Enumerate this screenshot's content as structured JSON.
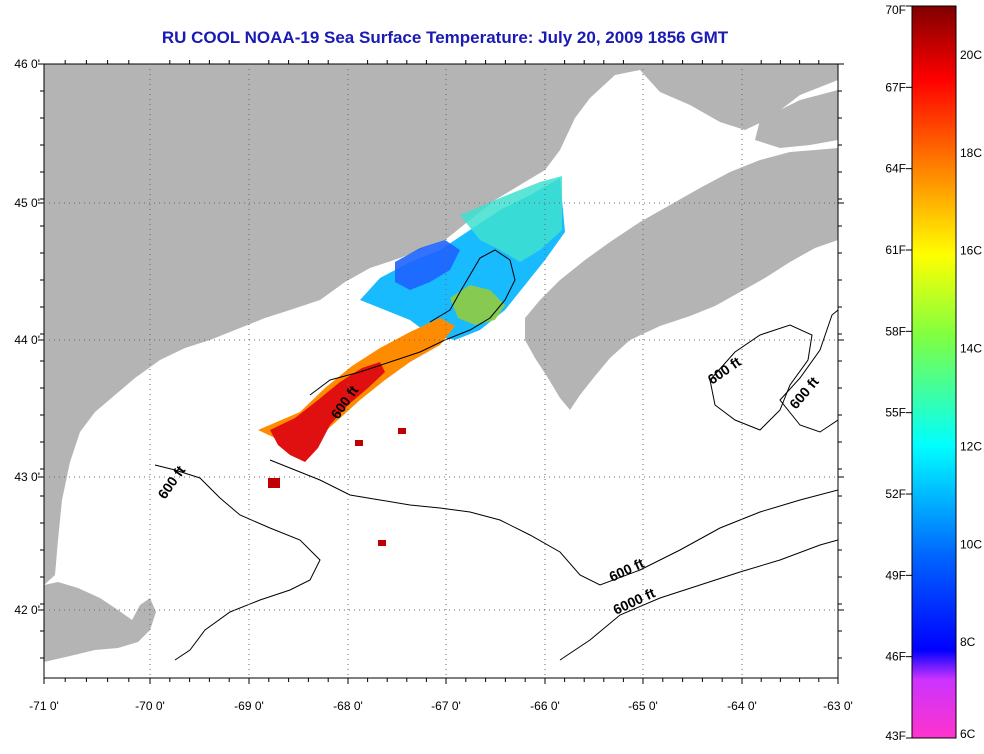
{
  "title": "RU COOL  NOAA-19  Sea Surface Temperature:  July 20, 2009 1856 GMT",
  "map": {
    "lon_ticks": [
      "-71 0'",
      "-70 0'",
      "-69 0'",
      "-68 0'",
      "-67 0'",
      "-66 0'",
      "-65 0'",
      "-64 0'",
      "-63 0'"
    ],
    "lat_ticks": [
      "46 0'",
      "45 0'",
      "44 0'",
      "43 0'",
      "42 0'"
    ],
    "land_color": "#b4b4b4",
    "water_color": "#ffffff",
    "contour_labels": [
      "600 ft",
      "600 ft",
      "600 ft",
      "600 ft",
      "600 ft",
      "6000 ft"
    ]
  },
  "colorbar": {
    "fahrenheit": [
      "70F",
      "67F",
      "64F",
      "61F",
      "58F",
      "55F",
      "52F",
      "49F",
      "46F",
      "43F"
    ],
    "celsius": [
      "20C",
      "18C",
      "16C",
      "14C",
      "12C",
      "10C",
      "8C",
      "6C"
    ],
    "colors": [
      "#8b0000",
      "#ff0000",
      "#ff8000",
      "#ffff00",
      "#80ff00",
      "#00ffff",
      "#0080ff",
      "#0000ff",
      "#8000ff",
      "#ff00ff"
    ]
  }
}
